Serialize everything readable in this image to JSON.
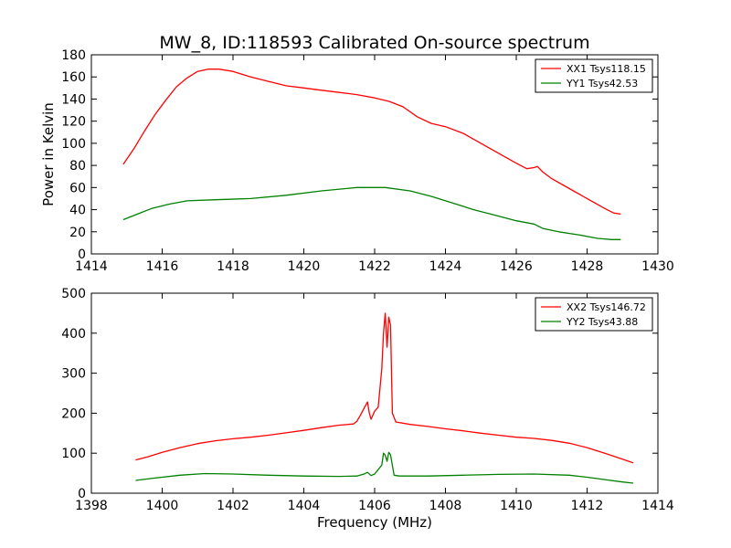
{
  "figure": {
    "title": "MW_8, ID:118593 Calibrated On-source spectrum",
    "xlabel": "Frequency (MHz)"
  },
  "colors": {
    "xx": "#ff0000",
    "yy": "#008000",
    "axes": "#000000"
  },
  "chart_data": [
    {
      "type": "line",
      "title": "MW_8, ID:118593 Calibrated On-source spectrum",
      "xlabel": "",
      "ylabel": "Power in Kelvin",
      "xlim": [
        1414,
        1430
      ],
      "ylim": [
        0,
        180
      ],
      "xticks": [
        1414,
        1416,
        1418,
        1420,
        1422,
        1424,
        1426,
        1428,
        1430
      ],
      "yticks": [
        0,
        20,
        40,
        60,
        80,
        100,
        120,
        140,
        160,
        180
      ],
      "grid": false,
      "legend": "top-right",
      "series": [
        {
          "name": "XX1 Tsys118.15",
          "color": "#ff0000",
          "points": [
            [
              1414.9,
              81
            ],
            [
              1415.2,
              95
            ],
            [
              1415.5,
              111
            ],
            [
              1415.8,
              126
            ],
            [
              1416.1,
              139
            ],
            [
              1416.4,
              151
            ],
            [
              1416.7,
              159
            ],
            [
              1417.0,
              165
            ],
            [
              1417.3,
              167
            ],
            [
              1417.6,
              167
            ],
            [
              1418.0,
              165
            ],
            [
              1418.5,
              160
            ],
            [
              1419.0,
              156
            ],
            [
              1419.5,
              152
            ],
            [
              1420.0,
              150
            ],
            [
              1420.5,
              148
            ],
            [
              1421.0,
              146
            ],
            [
              1421.5,
              144
            ],
            [
              1422.0,
              141
            ],
            [
              1422.4,
              138
            ],
            [
              1422.8,
              133
            ],
            [
              1423.2,
              124
            ],
            [
              1423.6,
              118
            ],
            [
              1424.0,
              115
            ],
            [
              1424.5,
              109
            ],
            [
              1425.0,
              100
            ],
            [
              1425.5,
              91
            ],
            [
              1426.0,
              82
            ],
            [
              1426.3,
              77
            ],
            [
              1426.5,
              78
            ],
            [
              1426.6,
              79
            ],
            [
              1426.75,
              74
            ],
            [
              1427.0,
              68
            ],
            [
              1427.5,
              59
            ],
            [
              1428.0,
              50
            ],
            [
              1428.5,
              41
            ],
            [
              1428.75,
              37
            ],
            [
              1428.95,
              36
            ]
          ]
        },
        {
          "name": "YY1 Tsys42.53",
          "color": "#008000",
          "points": [
            [
              1414.9,
              31
            ],
            [
              1415.3,
              36
            ],
            [
              1415.7,
              41
            ],
            [
              1416.2,
              45
            ],
            [
              1416.7,
              48
            ],
            [
              1417.5,
              49
            ],
            [
              1418.5,
              50
            ],
            [
              1419.5,
              53
            ],
            [
              1420.5,
              57
            ],
            [
              1421.5,
              60
            ],
            [
              1422.3,
              60
            ],
            [
              1423.0,
              57
            ],
            [
              1423.6,
              52
            ],
            [
              1424.2,
              46
            ],
            [
              1424.8,
              40
            ],
            [
              1425.4,
              35
            ],
            [
              1426.0,
              30
            ],
            [
              1426.5,
              27
            ],
            [
              1426.75,
              23
            ],
            [
              1427.2,
              20
            ],
            [
              1427.8,
              17
            ],
            [
              1428.3,
              14
            ],
            [
              1428.7,
              13
            ],
            [
              1428.95,
              13
            ]
          ]
        }
      ]
    },
    {
      "type": "line",
      "title": "",
      "xlabel": "Frequency (MHz)",
      "ylabel": "",
      "xlim": [
        1398,
        1414
      ],
      "ylim": [
        0,
        500
      ],
      "xticks": [
        1398,
        1400,
        1402,
        1404,
        1406,
        1408,
        1410,
        1412,
        1414
      ],
      "yticks": [
        0,
        100,
        200,
        300,
        400,
        500
      ],
      "grid": false,
      "legend": "top-right",
      "series": [
        {
          "name": "XX2 Tsys146.72",
          "color": "#ff0000",
          "points": [
            [
              1399.25,
              83
            ],
            [
              1399.6,
              91
            ],
            [
              1400.0,
              102
            ],
            [
              1400.5,
              114
            ],
            [
              1401.0,
              124
            ],
            [
              1401.5,
              131
            ],
            [
              1402.0,
              136
            ],
            [
              1402.5,
              140
            ],
            [
              1403.0,
              145
            ],
            [
              1403.5,
              151
            ],
            [
              1404.0,
              157
            ],
            [
              1404.5,
              164
            ],
            [
              1405.0,
              170
            ],
            [
              1405.4,
              173
            ],
            [
              1405.5,
              180
            ],
            [
              1405.6,
              195
            ],
            [
              1405.7,
              212
            ],
            [
              1405.8,
              228
            ],
            [
              1405.85,
              200
            ],
            [
              1405.9,
              185
            ],
            [
              1406.0,
              205
            ],
            [
              1406.1,
              215
            ],
            [
              1406.2,
              310
            ],
            [
              1406.25,
              400
            ],
            [
              1406.3,
              450
            ],
            [
              1406.35,
              365
            ],
            [
              1406.4,
              440
            ],
            [
              1406.45,
              420
            ],
            [
              1406.5,
              200
            ],
            [
              1406.6,
              178
            ],
            [
              1407.0,
              172
            ],
            [
              1407.5,
              167
            ],
            [
              1408.0,
              161
            ],
            [
              1408.5,
              156
            ],
            [
              1409.0,
              150
            ],
            [
              1409.5,
              145
            ],
            [
              1410.0,
              140
            ],
            [
              1410.5,
              137
            ],
            [
              1411.0,
              132
            ],
            [
              1411.5,
              125
            ],
            [
              1412.0,
              114
            ],
            [
              1412.5,
              100
            ],
            [
              1413.0,
              85
            ],
            [
              1413.3,
              76
            ]
          ]
        },
        {
          "name": "YY2 Tsys43.88",
          "color": "#008000",
          "points": [
            [
              1399.25,
              32
            ],
            [
              1399.8,
              38
            ],
            [
              1400.5,
              45
            ],
            [
              1401.2,
              49
            ],
            [
              1402.0,
              48
            ],
            [
              1403.0,
              45
            ],
            [
              1404.0,
              43
            ],
            [
              1405.0,
              42
            ],
            [
              1405.5,
              43
            ],
            [
              1405.7,
              48
            ],
            [
              1405.8,
              52
            ],
            [
              1405.9,
              44
            ],
            [
              1406.0,
              48
            ],
            [
              1406.2,
              70
            ],
            [
              1406.25,
              100
            ],
            [
              1406.3,
              95
            ],
            [
              1406.35,
              80
            ],
            [
              1406.4,
              102
            ],
            [
              1406.45,
              96
            ],
            [
              1406.55,
              45
            ],
            [
              1406.7,
              43
            ],
            [
              1407.5,
              43
            ],
            [
              1408.5,
              45
            ],
            [
              1409.5,
              47
            ],
            [
              1410.5,
              48
            ],
            [
              1411.5,
              45
            ],
            [
              1412.0,
              40
            ],
            [
              1412.5,
              34
            ],
            [
              1413.0,
              28
            ],
            [
              1413.3,
              25
            ]
          ]
        }
      ]
    }
  ]
}
